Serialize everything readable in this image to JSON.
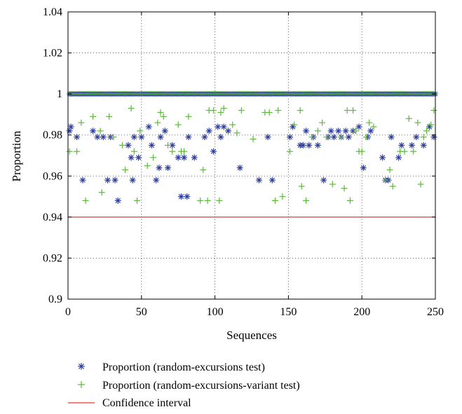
{
  "chart_data": {
    "type": "scatter",
    "xlabel": "Sequences",
    "ylabel": "Proportion",
    "xlim": [
      0,
      250
    ],
    "ylim": [
      0.9,
      1.04
    ],
    "x_ticks": [
      0,
      50,
      100,
      150,
      200,
      250
    ],
    "x_tick_labels": [
      "0",
      "50",
      "100",
      "150",
      "200",
      "250"
    ],
    "y_ticks": [
      0.9,
      0.92,
      0.94,
      0.96,
      0.98,
      1,
      1.02,
      1.04
    ],
    "y_tick_labels": [
      "0.9",
      "0.92",
      "0.94",
      "0.96",
      "0.98",
      "1",
      "1.02",
      "1.04"
    ],
    "grid": "dotted",
    "legend_position": "bottom",
    "series": [
      {
        "name": "Proportion (random-excursions test)",
        "marker": "asterisk",
        "color": "#2e3f9e",
        "points": [
          [
            1,
            0.982
          ],
          [
            2,
            0.984
          ],
          [
            6,
            0.979
          ],
          [
            10,
            0.958
          ],
          [
            17,
            0.982
          ],
          [
            20,
            0.979
          ],
          [
            24,
            0.979
          ],
          [
            27,
            0.958
          ],
          [
            29,
            0.979
          ],
          [
            32,
            0.958
          ],
          [
            34,
            0.948
          ],
          [
            41,
            0.975
          ],
          [
            43,
            0.969
          ],
          [
            44,
            0.958
          ],
          [
            45,
            0.979
          ],
          [
            48,
            0.969
          ],
          [
            50,
            0.979
          ],
          [
            55,
            0.984
          ],
          [
            57,
            0.975
          ],
          [
            60,
            0.958
          ],
          [
            62,
            0.964
          ],
          [
            63,
            0.979
          ],
          [
            66,
            0.982
          ],
          [
            68,
            0.964
          ],
          [
            71,
            0.975
          ],
          [
            75,
            0.969
          ],
          [
            77,
            0.95
          ],
          [
            79,
            0.969
          ],
          [
            81,
            0.95
          ],
          [
            82,
            0.979
          ],
          [
            86,
            0.969
          ],
          [
            93,
            0.979
          ],
          [
            96,
            0.982
          ],
          [
            99,
            0.972
          ],
          [
            102,
            0.984
          ],
          [
            104,
            0.979
          ],
          [
            106,
            0.984
          ],
          [
            109,
            0.982
          ],
          [
            117,
            0.964
          ],
          [
            130,
            0.958
          ],
          [
            136,
            0.979
          ],
          [
            139,
            0.958
          ],
          [
            151,
            0.979
          ],
          [
            153,
            0.984
          ],
          [
            158,
            0.975
          ],
          [
            160,
            0.975
          ],
          [
            162,
            0.982
          ],
          [
            164,
            0.975
          ],
          [
            167,
            0.979
          ],
          [
            170,
            0.975
          ],
          [
            174,
            0.958
          ],
          [
            177,
            0.979
          ],
          [
            179,
            0.982
          ],
          [
            181,
            0.979
          ],
          [
            184,
            0.982
          ],
          [
            186,
            0.979
          ],
          [
            189,
            0.982
          ],
          [
            191,
            0.979
          ],
          [
            194,
            0.982
          ],
          [
            198,
            0.984
          ],
          [
            201,
            0.964
          ],
          [
            204,
            0.979
          ],
          [
            206,
            0.982
          ],
          [
            214,
            0.969
          ],
          [
            216,
            0.958
          ],
          [
            218,
            0.958
          ],
          [
            220,
            0.979
          ],
          [
            225,
            0.969
          ],
          [
            227,
            0.975
          ],
          [
            234,
            0.975
          ],
          [
            237,
            0.979
          ],
          [
            242,
            0.975
          ],
          [
            246,
            0.984
          ],
          [
            249,
            0.979
          ]
        ]
      },
      {
        "name": "Proportion (random-excursions-variant test)",
        "marker": "plus",
        "color": "#5bb83a",
        "points": [
          [
            1,
            0.972
          ],
          [
            6,
            0.972
          ],
          [
            9,
            0.986
          ],
          [
            12,
            0.948
          ],
          [
            17,
            0.989
          ],
          [
            22,
            0.982
          ],
          [
            23,
            0.952
          ],
          [
            28,
            0.989
          ],
          [
            31,
            0.979
          ],
          [
            37,
            0.975
          ],
          [
            39,
            0.963
          ],
          [
            43,
            0.993
          ],
          [
            45,
            0.972
          ],
          [
            47,
            0.948
          ],
          [
            49,
            0.982
          ],
          [
            54,
            0.965
          ],
          [
            58,
            0.969
          ],
          [
            61,
            0.986
          ],
          [
            63,
            0.991
          ],
          [
            65,
            0.989
          ],
          [
            68,
            0.975
          ],
          [
            71,
            0.972
          ],
          [
            75,
            0.985
          ],
          [
            77,
            0.972
          ],
          [
            79,
            0.972
          ],
          [
            82,
            0.989
          ],
          [
            90,
            0.948
          ],
          [
            92,
            0.963
          ],
          [
            95,
            0.948
          ],
          [
            96,
            0.992
          ],
          [
            99,
            0.992
          ],
          [
            103,
            0.948
          ],
          [
            104,
            0.991
          ],
          [
            106,
            0.993
          ],
          [
            112,
            0.985
          ],
          [
            115,
            0.981
          ],
          [
            118,
            0.992
          ],
          [
            126,
            0.978
          ],
          [
            134,
            0.991
          ],
          [
            137,
            0.991
          ],
          [
            141,
            0.948
          ],
          [
            143,
            0.992
          ],
          [
            146,
            0.95
          ],
          [
            151,
            0.972
          ],
          [
            154,
            0.985
          ],
          [
            158,
            0.992
          ],
          [
            159,
            0.955
          ],
          [
            162,
            0.948
          ],
          [
            166,
            0.979
          ],
          [
            170,
            0.982
          ],
          [
            173,
            0.986
          ],
          [
            176,
            0.979
          ],
          [
            180,
            0.956
          ],
          [
            186,
            0.979
          ],
          [
            188,
            0.954
          ],
          [
            190,
            0.992
          ],
          [
            192,
            0.948
          ],
          [
            194,
            0.992
          ],
          [
            196,
            0.982
          ],
          [
            198,
            0.972
          ],
          [
            200,
            0.972
          ],
          [
            203,
            0.979
          ],
          [
            205,
            0.986
          ],
          [
            208,
            0.984
          ],
          [
            216,
            0.958
          ],
          [
            219,
            0.963
          ],
          [
            221,
            0.955
          ],
          [
            226,
            0.972
          ],
          [
            229,
            0.972
          ],
          [
            232,
            0.988
          ],
          [
            235,
            0.972
          ],
          [
            238,
            0.986
          ],
          [
            240,
            0.956
          ],
          [
            242,
            0.979
          ],
          [
            244,
            0.982
          ],
          [
            247,
            0.985
          ],
          [
            249,
            0.992
          ]
        ]
      },
      {
        "name": "Confidence interval",
        "marker": "line",
        "color": "#e8362c",
        "points": [
          [
            0,
            0.94
          ],
          [
            250,
            0.94
          ]
        ]
      }
    ],
    "dense_line": {
      "series_index": [
        0,
        1
      ],
      "y": 1,
      "x_range": [
        1,
        250
      ],
      "step": 1
    }
  }
}
